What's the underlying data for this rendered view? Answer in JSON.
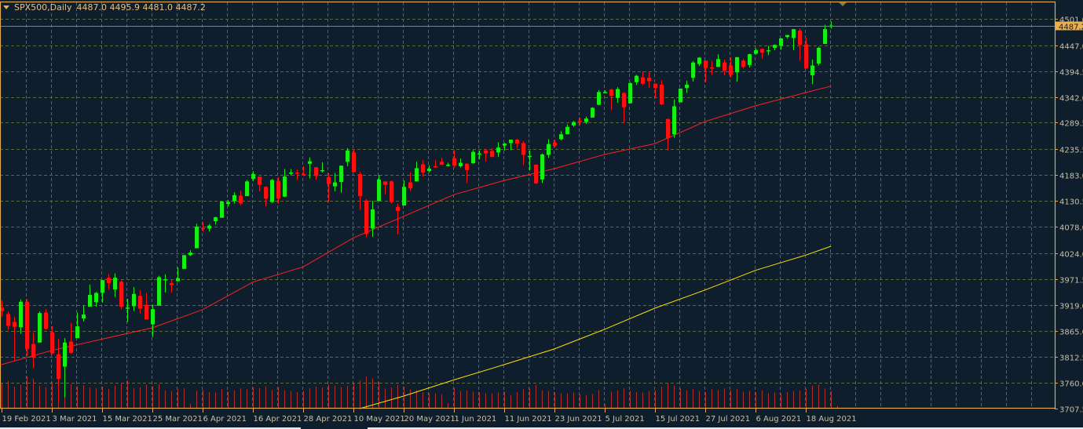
{
  "header": {
    "symbol": "SPX500,Daily",
    "ohlc": "4487.0 4495.9 4481.0 4487.2"
  },
  "colors": {
    "background": "#0f1e2d",
    "grid": "#5a6a3a",
    "border": "#e0a848",
    "bull": "#14f014",
    "bear": "#ff1010",
    "ma_fast": "#ff2020",
    "ma_slow": "#ffe000",
    "volume": "#b03030",
    "bid_line": "#7a8a5a",
    "axis_text": "#c8c0a8"
  },
  "chart_data": {
    "type": "candlestick",
    "symbol": "SPX500",
    "timeframe": "Daily",
    "current_price": 4487.2,
    "ylim": [
      3707.5,
      4501.0
    ],
    "y_ticks": [
      "4501.0",
      "4447.0",
      "4394.5",
      "4342.0",
      "4289.5",
      "4235.5",
      "4183.0",
      "4130.5",
      "4078.0",
      "4024.0",
      "3971.5",
      "3919.0",
      "3865.0",
      "3812.5",
      "3760.0",
      "3707.5"
    ],
    "x_ticks": [
      {
        "label": "19 Feb 2021",
        "bar": 0
      },
      {
        "label": "3 Mar 2021",
        "bar": 8
      },
      {
        "label": "15 Mar 2021",
        "bar": 16
      },
      {
        "label": "25 Mar 2021",
        "bar": 24
      },
      {
        "label": "6 Apr 2021",
        "bar": 32
      },
      {
        "label": "16 Apr 2021",
        "bar": 40
      },
      {
        "label": "28 Apr 2021",
        "bar": 48
      },
      {
        "label": "10 May 2021",
        "bar": 56
      },
      {
        "label": "20 May 2021",
        "bar": 64
      },
      {
        "label": "1 Jun 2021",
        "bar": 72
      },
      {
        "label": "11 Jun 2021",
        "bar": 80
      },
      {
        "label": "23 Jun 2021",
        "bar": 88
      },
      {
        "label": "5 Jul 2021",
        "bar": 96
      },
      {
        "label": "15 Jul 2021",
        "bar": 104
      },
      {
        "label": "27 Jul 2021",
        "bar": 112
      },
      {
        "label": "6 Aug 2021",
        "bar": 120
      },
      {
        "label": "18 Aug 2021",
        "bar": 128
      }
    ],
    "ohlc": [
      [
        3913,
        3928,
        3895,
        3906
      ],
      [
        3900,
        3905,
        3868,
        3876
      ],
      [
        3884,
        3895,
        3805,
        3874
      ],
      [
        3873,
        3930,
        3860,
        3925
      ],
      [
        3925,
        3930,
        3815,
        3829
      ],
      [
        3839,
        3862,
        3790,
        3811
      ],
      [
        3842,
        3905,
        3842,
        3902
      ],
      [
        3903,
        3910,
        3868,
        3870
      ],
      [
        3863,
        3875,
        3818,
        3820
      ],
      [
        3818,
        3849,
        3723,
        3768
      ],
      [
        3793,
        3851,
        3730,
        3842
      ],
      [
        3844,
        3882,
        3819,
        3821
      ],
      [
        3851,
        3903,
        3851,
        3875
      ],
      [
        3891,
        3918,
        3885,
        3899
      ],
      [
        3915,
        3960,
        3915,
        3939
      ],
      [
        3924,
        3945,
        3915,
        3943
      ],
      [
        3943,
        3970,
        3923,
        3969
      ],
      [
        3974,
        3982,
        3950,
        3963
      ],
      [
        3950,
        3983,
        3935,
        3974
      ],
      [
        3966,
        3969,
        3910,
        3915
      ],
      [
        3913,
        3931,
        3884,
        3913
      ],
      [
        3916,
        3955,
        3906,
        3941
      ],
      [
        3937,
        3949,
        3901,
        3911
      ],
      [
        3919,
        3943,
        3889,
        3889
      ],
      [
        3879,
        3919,
        3853,
        3910
      ],
      [
        3917,
        3978,
        3917,
        3975
      ],
      [
        3969,
        3981,
        3944,
        3971
      ],
      [
        3963,
        3969,
        3944,
        3959
      ],
      [
        3967,
        3995,
        3966,
        3973
      ],
      [
        3992,
        4020,
        3992,
        4020
      ],
      [
        4020,
        4030,
        4018,
        4025
      ],
      [
        4034,
        4084,
        4034,
        4078
      ],
      [
        4075,
        4087,
        4068,
        4074
      ],
      [
        4074,
        4083,
        4068,
        4080
      ],
      [
        4089,
        4098,
        4082,
        4097
      ],
      [
        4096,
        4130,
        4096,
        4129
      ],
      [
        4124,
        4132,
        4119,
        4128
      ],
      [
        4130,
        4148,
        4125,
        4142
      ],
      [
        4141,
        4151,
        4121,
        4125
      ],
      [
        4140,
        4173,
        4140,
        4170
      ],
      [
        4175,
        4191,
        4171,
        4185
      ],
      [
        4180,
        4180,
        4150,
        4163
      ],
      [
        4159,
        4160,
        4119,
        4135
      ],
      [
        4128,
        4175,
        4126,
        4173
      ],
      [
        4171,
        4179,
        4125,
        4135
      ],
      [
        4139,
        4195,
        4138,
        4180
      ],
      [
        4186,
        4195,
        4182,
        4188
      ],
      [
        4188,
        4194,
        4173,
        4187
      ],
      [
        4185,
        4201,
        4181,
        4183
      ],
      [
        4206,
        4219,
        4176,
        4211
      ],
      [
        4199,
        4199,
        4174,
        4181
      ],
      [
        4192,
        4209,
        4188,
        4193
      ],
      [
        4179,
        4187,
        4128,
        4165
      ],
      [
        4160,
        4187,
        4150,
        4168
      ],
      [
        4169,
        4202,
        4147,
        4202
      ],
      [
        4210,
        4238,
        4201,
        4233
      ],
      [
        4229,
        4236,
        4188,
        4189
      ],
      [
        4185,
        4190,
        4112,
        4140
      ],
      [
        4131,
        4134,
        4056,
        4063
      ],
      [
        4074,
        4131,
        4057,
        4113
      ],
      [
        4130,
        4183,
        4130,
        4174
      ],
      [
        4170,
        4170,
        4143,
        4163
      ],
      [
        4170,
        4172,
        4125,
        4128
      ],
      [
        4118,
        4125,
        4062,
        4110
      ],
      [
        4121,
        4172,
        4121,
        4159
      ],
      [
        4168,
        4188,
        4151,
        4156
      ],
      [
        4170,
        4210,
        4170,
        4197
      ],
      [
        4205,
        4213,
        4180,
        4188
      ],
      [
        4191,
        4203,
        4188,
        4196
      ],
      [
        4201,
        4213,
        4197,
        4200
      ],
      [
        4210,
        4218,
        4203,
        4204
      ],
      [
        4204,
        4208,
        4200,
        4204
      ],
      [
        4217,
        4234,
        4198,
        4202
      ],
      [
        4201,
        4217,
        4198,
        4208
      ],
      [
        4206,
        4207,
        4167,
        4193
      ],
      [
        4207,
        4234,
        4206,
        4230
      ],
      [
        4227,
        4233,
        4215,
        4227
      ],
      [
        4233,
        4236,
        4210,
        4227
      ],
      [
        4232,
        4238,
        4219,
        4220
      ],
      [
        4229,
        4250,
        4220,
        4239
      ],
      [
        4243,
        4249,
        4233,
        4247
      ],
      [
        4248,
        4255,
        4234,
        4255
      ],
      [
        4255,
        4257,
        4238,
        4247
      ],
      [
        4248,
        4252,
        4203,
        4224
      ],
      [
        4220,
        4233,
        4192,
        4222
      ],
      [
        4204,
        4205,
        4165,
        4166
      ],
      [
        4174,
        4227,
        4167,
        4225
      ],
      [
        4224,
        4256,
        4218,
        4246
      ],
      [
        4249,
        4255,
        4240,
        4242
      ],
      [
        4256,
        4272,
        4254,
        4266
      ],
      [
        4266,
        4286,
        4266,
        4281
      ],
      [
        4284,
        4293,
        4281,
        4291
      ],
      [
        4293,
        4300,
        4285,
        4292
      ],
      [
        4291,
        4302,
        4287,
        4298
      ],
      [
        4300,
        4321,
        4300,
        4320
      ],
      [
        4326,
        4356,
        4325,
        4352
      ],
      [
        4352,
        4356,
        4350,
        4352
      ],
      [
        4357,
        4359,
        4315,
        4344
      ],
      [
        4340,
        4362,
        4330,
        4358
      ],
      [
        4350,
        4352,
        4289,
        4321
      ],
      [
        4329,
        4372,
        4329,
        4370
      ],
      [
        4372,
        4387,
        4366,
        4385
      ],
      [
        4382,
        4394,
        4366,
        4369
      ],
      [
        4381,
        4393,
        4361,
        4374
      ],
      [
        4369,
        4370,
        4340,
        4360
      ],
      [
        4367,
        4376,
        4325,
        4327
      ],
      [
        4297,
        4298,
        4233,
        4258
      ],
      [
        4266,
        4337,
        4259,
        4323
      ],
      [
        4331,
        4359,
        4331,
        4359
      ],
      [
        4360,
        4375,
        4350,
        4367
      ],
      [
        4381,
        4415,
        4373,
        4412
      ],
      [
        4409,
        4423,
        4405,
        4422
      ],
      [
        4416,
        4416,
        4372,
        4401
      ],
      [
        4402,
        4416,
        4387,
        4401
      ],
      [
        4403,
        4429,
        4403,
        4419
      ],
      [
        4412,
        4418,
        4386,
        4395
      ],
      [
        4406,
        4423,
        4381,
        4387
      ],
      [
        4392,
        4423,
        4373,
        4423
      ],
      [
        4416,
        4420,
        4400,
        4403
      ],
      [
        4407,
        4430,
        4402,
        4429
      ],
      [
        4430,
        4441,
        4428,
        4437
      ],
      [
        4440,
        4440,
        4420,
        4432
      ],
      [
        4436,
        4446,
        4427,
        4437
      ],
      [
        4442,
        4449,
        4437,
        4448
      ],
      [
        4446,
        4462,
        4438,
        4461
      ],
      [
        4464,
        4468,
        4461,
        4468
      ],
      [
        4462,
        4480,
        4437,
        4480
      ],
      [
        4477,
        4481,
        4416,
        4448
      ],
      [
        4449,
        4462,
        4400,
        4400
      ],
      [
        4386,
        4418,
        4368,
        4406
      ],
      [
        4410,
        4444,
        4406,
        4442
      ],
      [
        4450,
        4489,
        4450,
        4480
      ],
      [
        4487.0,
        4495.9,
        4481.0,
        4487.2
      ]
    ],
    "volume": [
      55,
      60,
      48,
      52,
      70,
      65,
      50,
      47,
      58,
      72,
      66,
      54,
      49,
      51,
      46,
      44,
      48,
      42,
      50,
      56,
      62,
      45,
      47,
      52,
      49,
      53,
      40,
      38,
      42,
      44,
      10,
      39,
      41,
      36,
      35,
      43,
      37,
      40,
      44,
      42,
      46,
      45,
      49,
      41,
      47,
      40,
      38,
      36,
      39,
      44,
      48,
      46,
      52,
      50,
      47,
      49,
      55,
      62,
      70,
      66,
      58,
      44,
      46,
      52,
      48,
      42,
      40,
      36,
      34,
      33,
      31,
      12,
      45,
      38,
      40,
      37,
      36,
      34,
      33,
      35,
      37,
      30,
      36,
      42,
      44,
      52,
      40,
      38,
      36,
      34,
      33,
      35,
      31,
      30,
      32,
      41,
      10,
      37,
      40,
      44,
      39,
      36,
      35,
      38,
      40,
      48,
      55,
      50,
      44,
      40,
      43,
      38,
      36,
      42,
      41,
      44,
      40,
      43,
      37,
      39,
      36,
      40,
      34,
      35,
      33,
      36,
      38,
      40,
      43,
      50,
      52,
      44,
      38,
      6
    ],
    "ma_fast": {
      "period_label": "",
      "points": [
        [
          0,
          3797
        ],
        [
          8,
          3826
        ],
        [
          24,
          3872
        ],
        [
          32,
          3909
        ],
        [
          40,
          3965
        ],
        [
          48,
          3996
        ],
        [
          56,
          4055
        ],
        [
          64,
          4099
        ],
        [
          72,
          4143
        ],
        [
          80,
          4172
        ],
        [
          88,
          4196
        ],
        [
          96,
          4225
        ],
        [
          104,
          4247
        ],
        [
          112,
          4292
        ],
        [
          120,
          4324
        ],
        [
          128,
          4351
        ],
        [
          132,
          4364
        ]
      ]
    },
    "ma_slow": {
      "period_label": "",
      "points": [
        [
          57,
          3707
        ],
        [
          64,
          3733
        ],
        [
          72,
          3766
        ],
        [
          80,
          3797
        ],
        [
          88,
          3829
        ],
        [
          96,
          3869
        ],
        [
          104,
          3912
        ],
        [
          112,
          3949
        ],
        [
          120,
          3989
        ],
        [
          128,
          4020
        ],
        [
          132,
          4038
        ]
      ]
    },
    "grid": true
  }
}
